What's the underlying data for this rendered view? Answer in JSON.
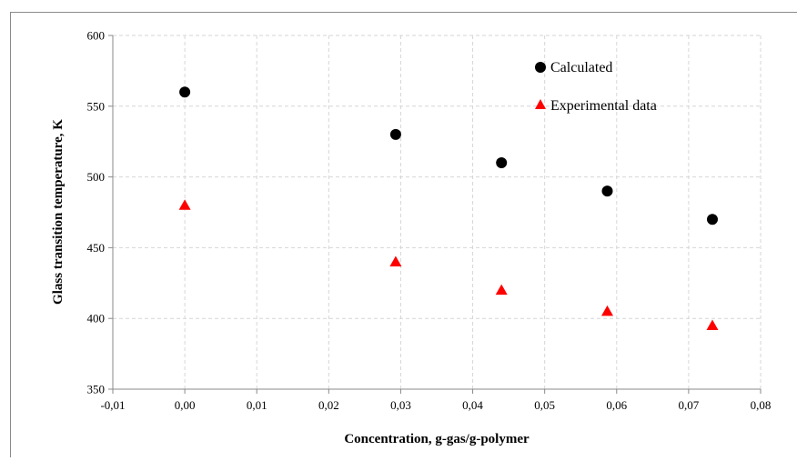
{
  "chart_data": {
    "type": "scatter",
    "title": "",
    "xlabel": "Concentration, g-gas/g-polymer",
    "ylabel": "Glass transition temperature, K",
    "xlim": [
      -0.01,
      0.08
    ],
    "ylim": [
      350,
      600
    ],
    "x_ticks": [
      "-0,01",
      "0,00",
      "0,01",
      "0,02",
      "0,03",
      "0,04",
      "0,05",
      "0,06",
      "0,07",
      "0,08"
    ],
    "y_ticks": [
      "350",
      "400",
      "450",
      "500",
      "550",
      "600"
    ],
    "x_tick_values": [
      -0.01,
      0,
      0.01,
      0.02,
      0.03,
      0.04,
      0.05,
      0.06,
      0.07,
      0.08
    ],
    "y_tick_values": [
      350,
      400,
      450,
      500,
      550,
      600
    ],
    "grid": true,
    "legend_position": "top-right",
    "series": [
      {
        "name": "Calculated",
        "marker": "circle",
        "color": "#000000",
        "x": [
          0.0,
          0.0293,
          0.044,
          0.0587,
          0.0733
        ],
        "y": [
          560,
          530,
          510,
          490,
          470
        ]
      },
      {
        "name": "Experimental data",
        "marker": "triangle",
        "color": "#ff0000",
        "x": [
          0.0,
          0.0293,
          0.044,
          0.0587,
          0.0733
        ],
        "y": [
          480,
          440,
          420,
          405,
          395
        ]
      }
    ]
  }
}
